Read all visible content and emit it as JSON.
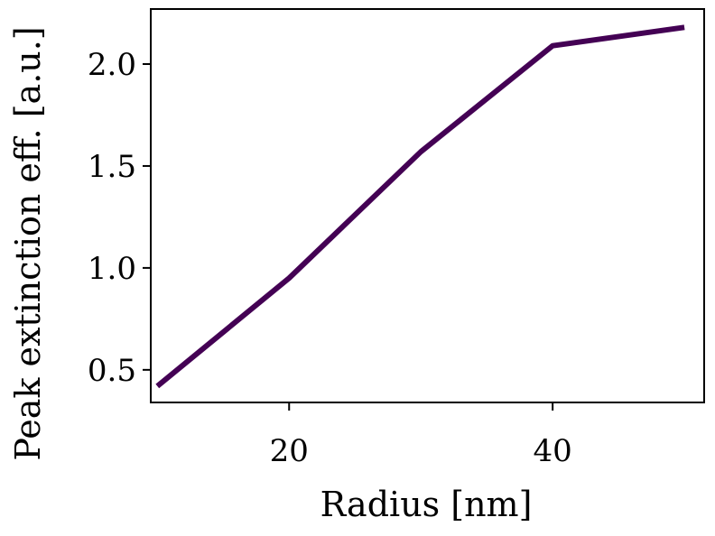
{
  "chart_data": {
    "type": "line",
    "title": "",
    "xlabel": "Radius [nm]",
    "ylabel": "Peak extinction eff. [a.u.]",
    "xlim": [
      9.5,
      51.5
    ],
    "ylim": [
      0.34,
      2.27
    ],
    "xticks": [
      20,
      40
    ],
    "xtick_labels": [
      "20",
      "40"
    ],
    "yticks": [
      0.5,
      1.0,
      1.5,
      2.0
    ],
    "ytick_labels": [
      "0.5",
      "1.0",
      "1.5",
      "2.0"
    ],
    "grid": false,
    "series": [
      {
        "color": "#440154",
        "x": [
          10,
          20,
          30,
          40,
          50
        ],
        "y": [
          0.42,
          0.95,
          1.57,
          2.09,
          2.18
        ]
      }
    ]
  }
}
